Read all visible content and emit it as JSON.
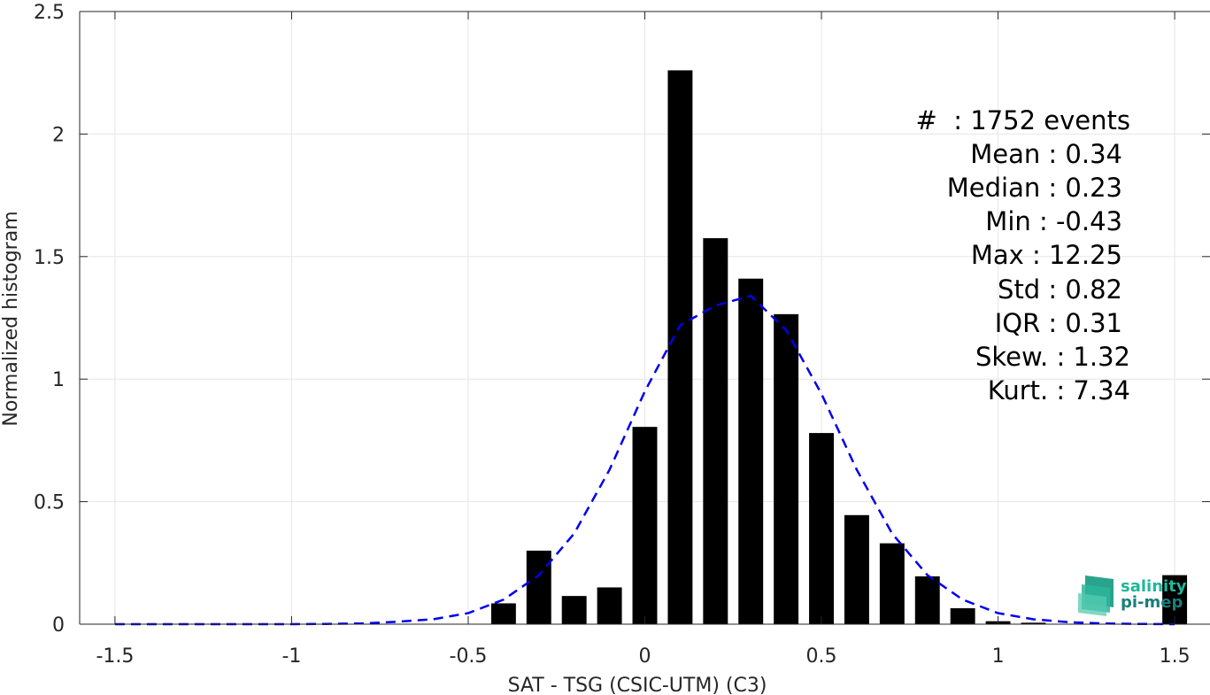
{
  "chart_data": {
    "type": "bar",
    "xlabel": "SAT - TSG (CSIC-UTM) (C3)",
    "ylabel": "Normalized histogram",
    "xlim": [
      -1.6,
      1.6
    ],
    "ylim": [
      0,
      2.5
    ],
    "xticks": [
      -1.5,
      -1,
      -0.5,
      0,
      0.5,
      1,
      1.5
    ],
    "xtick_labels": [
      "-1.5",
      "-1",
      "-0.5",
      "0",
      "0.5",
      "1",
      "1.5"
    ],
    "yticks": [
      0,
      0.5,
      1,
      1.5,
      2,
      2.5
    ],
    "ytick_labels": [
      "0",
      "0.5",
      "1",
      "1.5",
      "2",
      "2.5"
    ],
    "grid": true,
    "colors": {
      "bars": "#000000",
      "fit_curve": "#0000ee",
      "grid": "#e6e6e6",
      "axes": "#262626"
    },
    "bars": {
      "x": [
        -0.4,
        -0.3,
        -0.2,
        -0.1,
        0.0,
        0.1,
        0.2,
        0.3,
        0.4,
        0.5,
        0.6,
        0.7,
        0.8,
        0.9,
        1.0,
        1.1,
        1.5
      ],
      "values": [
        0.085,
        0.3,
        0.115,
        0.15,
        0.805,
        2.26,
        1.575,
        1.41,
        1.265,
        0.78,
        0.445,
        0.33,
        0.195,
        0.065,
        0.012,
        0.006,
        0.2
      ],
      "width": 0.07
    },
    "fit_curve": {
      "style": "dashed",
      "x": [
        -1.5,
        -1.4,
        -1.3,
        -1.2,
        -1.1,
        -1.0,
        -0.9,
        -0.8,
        -0.7,
        -0.6,
        -0.5,
        -0.4,
        -0.3,
        -0.2,
        -0.1,
        0.0,
        0.1,
        0.2,
        0.3,
        0.4,
        0.5,
        0.6,
        0.7,
        0.8,
        0.9,
        1.0,
        1.1,
        1.2,
        1.3,
        1.4,
        1.5
      ],
      "y": [
        0.0,
        0.0,
        0.0,
        0.0,
        0.0,
        0.0,
        0.001,
        0.003,
        0.01,
        0.02,
        0.045,
        0.1,
        0.2,
        0.37,
        0.63,
        0.95,
        1.22,
        1.3,
        1.34,
        1.2,
        0.94,
        0.63,
        0.37,
        0.2,
        0.1,
        0.045,
        0.02,
        0.008,
        0.003,
        0.001,
        0.0
      ]
    },
    "annotations": [
      "#  : 1752 events",
      "Mean : 0.34",
      "Median : 0.23",
      "Min : -0.43",
      "Max : 12.25",
      "Std : 0.82",
      "IQR : 0.31",
      "Skew. : 1.32",
      "Kurt. : 7.34"
    ]
  },
  "logo": {
    "line1": "salinity",
    "line2": "pi-mep",
    "color1": "#1fb79b",
    "color2": "#1a7e78"
  }
}
